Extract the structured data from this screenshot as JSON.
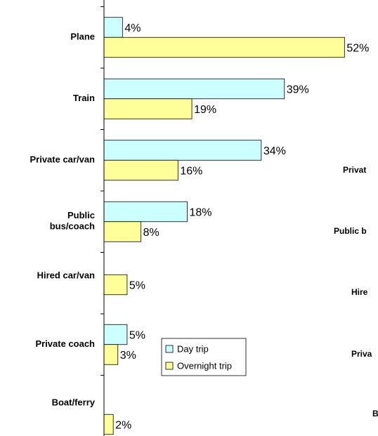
{
  "chart_data": {
    "type": "hbar",
    "categories": [
      "Plane",
      "Train",
      "Private car/van",
      "Public\nbus/coach",
      "Hired car/van",
      "Private coach",
      "Boat/ferry"
    ],
    "series": [
      {
        "name": "Day trip",
        "color": "#ccffff",
        "values": [
          4,
          39,
          34,
          18,
          null,
          5,
          null
        ],
        "value_labels": [
          "4%",
          "39%",
          "34%",
          "18%",
          null,
          "5%",
          null
        ]
      },
      {
        "name": "Overnight trip",
        "color": "#ffff99",
        "values": [
          52,
          19,
          16,
          8,
          5,
          3,
          2
        ],
        "value_labels": [
          "52%",
          "19%",
          "16%",
          "8%",
          "5%",
          "3%",
          "2%"
        ]
      }
    ],
    "xlim": [
      0,
      60
    ]
  },
  "clipped_labels": [
    "Privat",
    "Public b",
    "Hire",
    "Priva",
    "B"
  ]
}
